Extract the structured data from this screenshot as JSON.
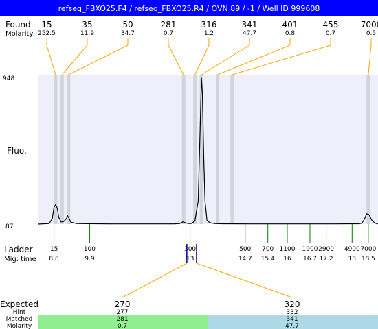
{
  "header": {
    "title": "refseq_FBXO25.F4 / refseq_FBXO25.R4 / OVN 89 / -1 / Well ID 999608"
  },
  "labels": {
    "found": "Found",
    "molarity": "Molarity",
    "fluo": "Fluo.",
    "ladder": "Ladder",
    "mig_time": "Mig. time",
    "expected": "Expected",
    "hint": "Hint",
    "matched": "Matched",
    "molarity_bottom": "Molarity"
  },
  "colors": {
    "title_bar": "#0000ff",
    "plot_bg": "#efeffb",
    "found_band": "#d3d3de",
    "found_line": "#ffa500",
    "ladder_tick": "#008000",
    "marker_tick": "#00008b",
    "trace": "#000000",
    "matched_left": "#90ee90",
    "matched_right": "#add8e6"
  },
  "chart_data": {
    "type": "line",
    "title": "refseq_FBXO25.F4 / refseq_FBXO25.R4 / OVN 89 / -1 / Well ID 999608",
    "xlabel": "",
    "ylabel": "Fluo.",
    "ylim": [
      87,
      948
    ],
    "y_ticks": [
      "948",
      "87"
    ],
    "found_peaks": [
      {
        "size": "15",
        "molarity": "252.5",
        "mig_time": 8.85
      },
      {
        "size": "35",
        "molarity": "11.9",
        "mig_time": 9.05
      },
      {
        "size": "50",
        "molarity": "34.7",
        "mig_time": 9.25
      },
      {
        "size": "281",
        "molarity": "0.7",
        "mig_time": 12.8
      },
      {
        "size": "316",
        "molarity": "1.2",
        "mig_time": 13.15
      },
      {
        "size": "341",
        "molarity": "47.7",
        "mig_time": 13.35
      },
      {
        "size": "401",
        "molarity": "0.8",
        "mig_time": 13.85
      },
      {
        "size": "455",
        "molarity": "0.7",
        "mig_time": 14.3
      },
      {
        "size": "7000",
        "molarity": "0.5",
        "mig_time": 18.5
      }
    ],
    "ladder": [
      {
        "size": "15",
        "mig_time": "8.8"
      },
      {
        "size": "100",
        "mig_time": "9.9"
      },
      {
        "size": "300",
        "mig_time": "13"
      },
      {
        "size": "500",
        "mig_time": "14.7"
      },
      {
        "size": "700",
        "mig_time": "15.4"
      },
      {
        "size": "1100",
        "mig_time": "16"
      },
      {
        "size": "1900",
        "mig_time": "16.7"
      },
      {
        "size": "2900",
        "mig_time": "17.2"
      },
      {
        "size": "4900",
        "mig_time": "18"
      },
      {
        "size": "7000",
        "mig_time": "18.5"
      }
    ],
    "expected": [
      {
        "size": "270",
        "hint": "277",
        "matched": "281",
        "molarity": "0.7"
      },
      {
        "size": "320",
        "hint": "332",
        "matched": "341",
        "molarity": "47.7"
      }
    ],
    "trace": [
      [
        8.3,
        87
      ],
      [
        8.65,
        90
      ],
      [
        8.75,
        120
      ],
      [
        8.8,
        185
      ],
      [
        8.85,
        200
      ],
      [
        8.9,
        180
      ],
      [
        8.95,
        125
      ],
      [
        9.02,
        100
      ],
      [
        9.1,
        102
      ],
      [
        9.18,
        118
      ],
      [
        9.22,
        135
      ],
      [
        9.26,
        123
      ],
      [
        9.32,
        98
      ],
      [
        9.5,
        90
      ],
      [
        10.5,
        88
      ],
      [
        12.0,
        88
      ],
      [
        12.5,
        88
      ],
      [
        12.68,
        90
      ],
      [
        12.78,
        100
      ],
      [
        12.85,
        95
      ],
      [
        12.95,
        90
      ],
      [
        13.05,
        91
      ],
      [
        13.15,
        105
      ],
      [
        13.25,
        220
      ],
      [
        13.3,
        560
      ],
      [
        13.35,
        930
      ],
      [
        13.38,
        840
      ],
      [
        13.42,
        480
      ],
      [
        13.46,
        220
      ],
      [
        13.52,
        110
      ],
      [
        13.6,
        96
      ],
      [
        13.75,
        90
      ],
      [
        14.0,
        89
      ],
      [
        14.8,
        88
      ],
      [
        16.0,
        88
      ],
      [
        17.5,
        88
      ],
      [
        18.2,
        89
      ],
      [
        18.3,
        92
      ],
      [
        18.38,
        115
      ],
      [
        18.45,
        147
      ],
      [
        18.52,
        142
      ],
      [
        18.6,
        112
      ],
      [
        18.7,
        93
      ],
      [
        18.8,
        88
      ]
    ]
  }
}
